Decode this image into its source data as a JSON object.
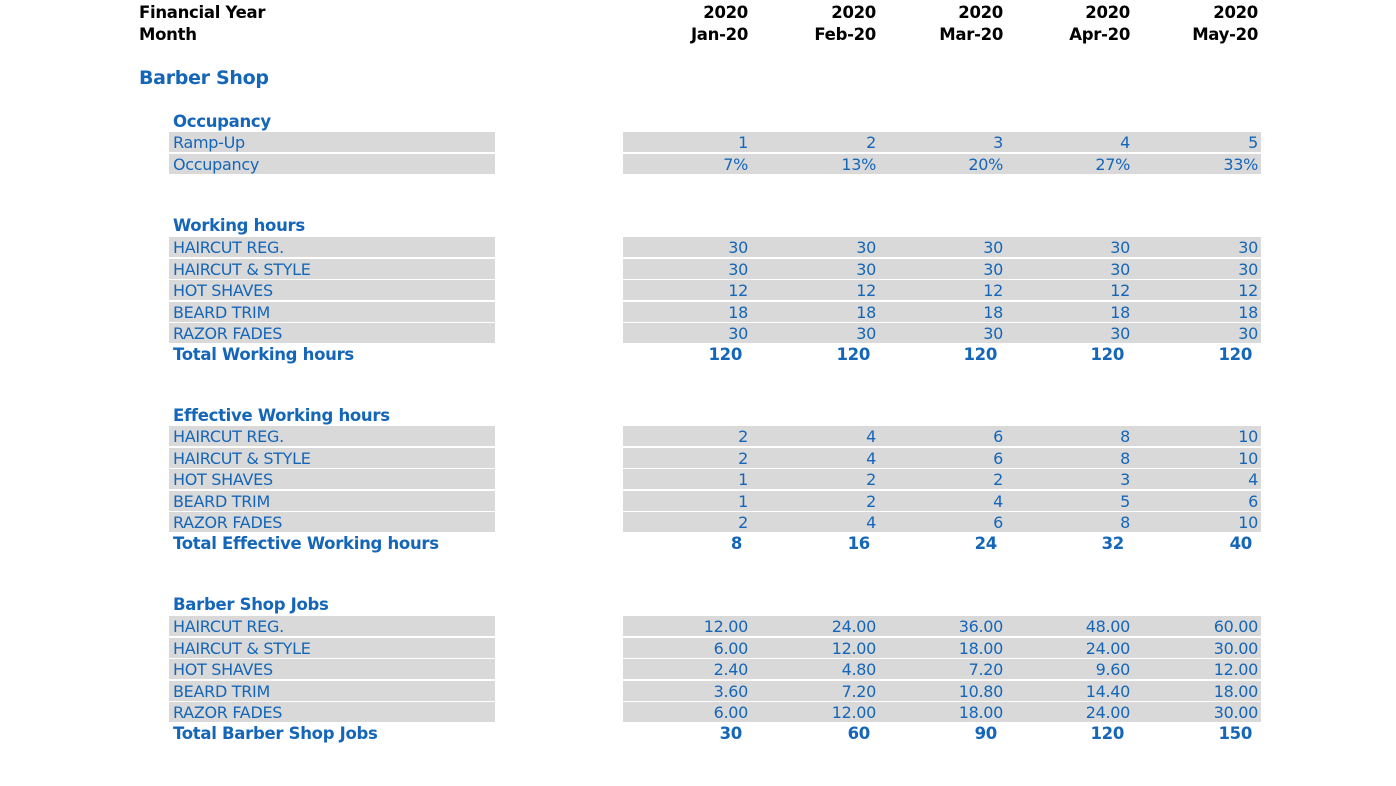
{
  "header": {
    "year_label": "Financial Year",
    "month_label": "Month",
    "years": [
      "2020",
      "2020",
      "2020",
      "2020",
      "2020"
    ],
    "months": [
      "Jan-20",
      "Feb-20",
      "Mar-20",
      "Apr-20",
      "May-20"
    ]
  },
  "section_title": "Barber Shop",
  "occupancy": {
    "title": "Occupancy",
    "rows": [
      {
        "label": "Ramp-Up",
        "values": [
          "1",
          "2",
          "3",
          "4",
          "5"
        ]
      },
      {
        "label": "Occupancy",
        "values": [
          "7%",
          "13%",
          "20%",
          "27%",
          "33%"
        ]
      }
    ]
  },
  "working_hours": {
    "title": "Working hours",
    "rows": [
      {
        "label": "HAIRCUT REG.",
        "values": [
          "30",
          "30",
          "30",
          "30",
          "30"
        ]
      },
      {
        "label": "HAIRCUT & STYLE",
        "values": [
          "30",
          "30",
          "30",
          "30",
          "30"
        ]
      },
      {
        "label": "HOT SHAVES",
        "values": [
          "12",
          "12",
          "12",
          "12",
          "12"
        ]
      },
      {
        "label": "BEARD TRIM",
        "values": [
          "18",
          "18",
          "18",
          "18",
          "18"
        ]
      },
      {
        "label": "RAZOR FADES",
        "values": [
          "30",
          "30",
          "30",
          "30",
          "30"
        ]
      }
    ],
    "total_label": "Total Working hours",
    "totals": [
      "120",
      "120",
      "120",
      "120",
      "120"
    ]
  },
  "effective_hours": {
    "title": "Effective Working hours",
    "rows": [
      {
        "label": "HAIRCUT REG.",
        "values": [
          "2",
          "4",
          "6",
          "8",
          "10"
        ]
      },
      {
        "label": "HAIRCUT & STYLE",
        "values": [
          "2",
          "4",
          "6",
          "8",
          "10"
        ]
      },
      {
        "label": "HOT SHAVES",
        "values": [
          "1",
          "2",
          "2",
          "3",
          "4"
        ]
      },
      {
        "label": "BEARD TRIM",
        "values": [
          "1",
          "2",
          "4",
          "5",
          "6"
        ]
      },
      {
        "label": "RAZOR FADES",
        "values": [
          "2",
          "4",
          "6",
          "8",
          "10"
        ]
      }
    ],
    "total_label": "Total Effective Working hours",
    "totals": [
      "8",
      "16",
      "24",
      "32",
      "40"
    ]
  },
  "jobs": {
    "title": "Barber Shop Jobs",
    "rows": [
      {
        "label": "HAIRCUT REG.",
        "values": [
          "12.00",
          "24.00",
          "36.00",
          "48.00",
          "60.00"
        ]
      },
      {
        "label": "HAIRCUT & STYLE",
        "values": [
          "6.00",
          "12.00",
          "18.00",
          "24.00",
          "30.00"
        ]
      },
      {
        "label": "HOT SHAVES",
        "values": [
          "2.40",
          "4.80",
          "7.20",
          "9.60",
          "12.00"
        ]
      },
      {
        "label": "BEARD TRIM",
        "values": [
          "3.60",
          "7.20",
          "10.80",
          "14.40",
          "18.00"
        ]
      },
      {
        "label": "RAZOR FADES",
        "values": [
          "6.00",
          "12.00",
          "18.00",
          "24.00",
          "30.00"
        ]
      }
    ],
    "total_label": "Total Barber Shop Jobs",
    "totals": [
      "30",
      "60",
      "90",
      "120",
      "150"
    ]
  }
}
